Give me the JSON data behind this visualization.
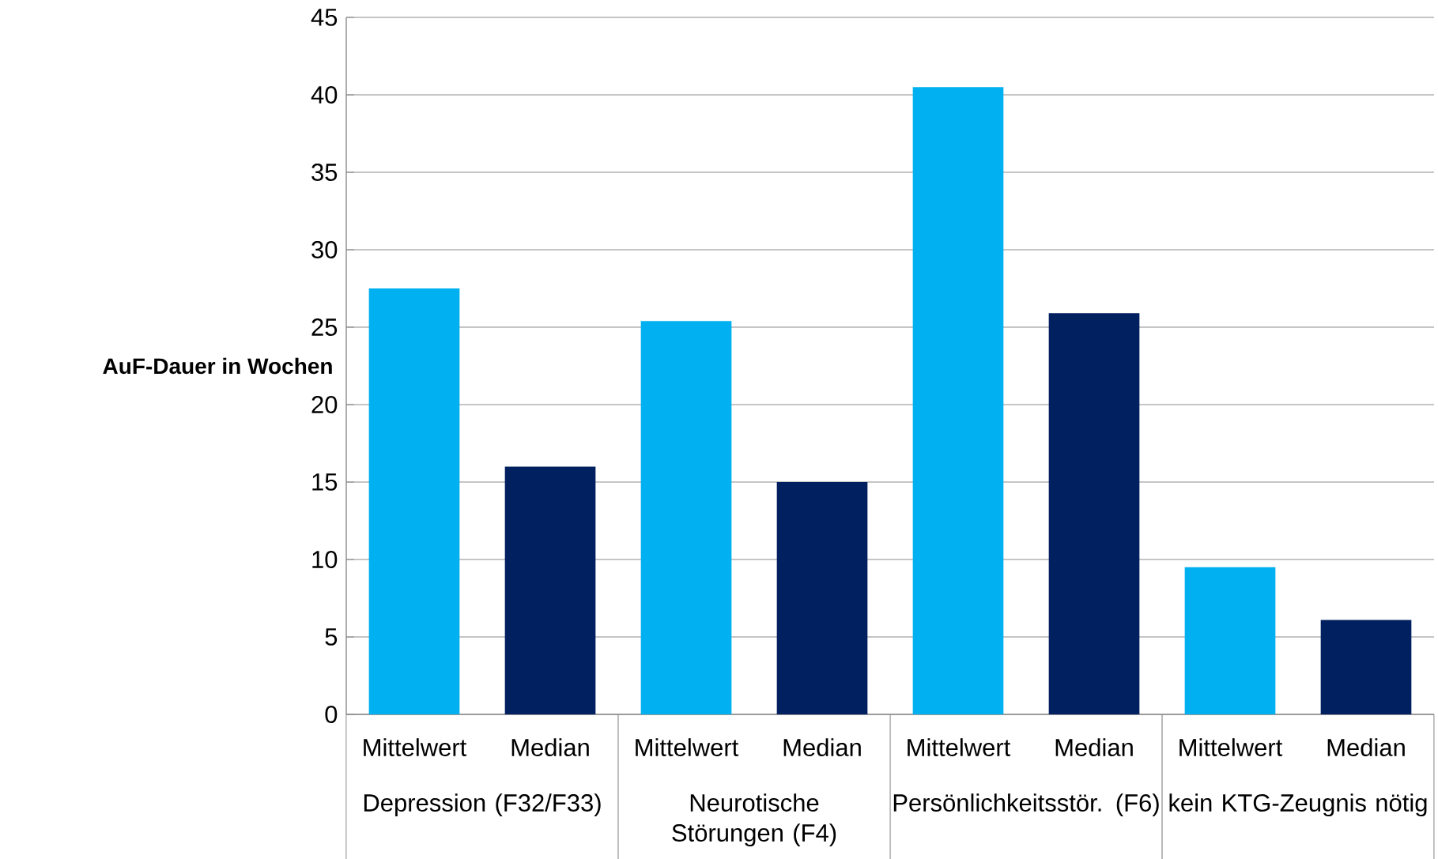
{
  "chart_data": {
    "type": "bar",
    "ylabel": "AuF-Dauer in Wochen",
    "categories": [
      "Depression (F32/F33)",
      "Neurotische Störungen (F4)",
      "Persönlichkeitsstör. (F6)",
      "kein KTG-Zeugnis nötig"
    ],
    "series": [
      {
        "name": "Mittelwert",
        "color": "#00b0f0",
        "values": [
          27.5,
          25.4,
          40.5,
          9.5
        ]
      },
      {
        "name": "Median",
        "color": "#002060",
        "values": [
          16,
          15,
          25.9,
          6.1
        ]
      }
    ],
    "ylim": [
      0,
      45
    ],
    "yticks": [
      0,
      5,
      10,
      15,
      20,
      25,
      30,
      35,
      40,
      45
    ],
    "grid": "y"
  }
}
